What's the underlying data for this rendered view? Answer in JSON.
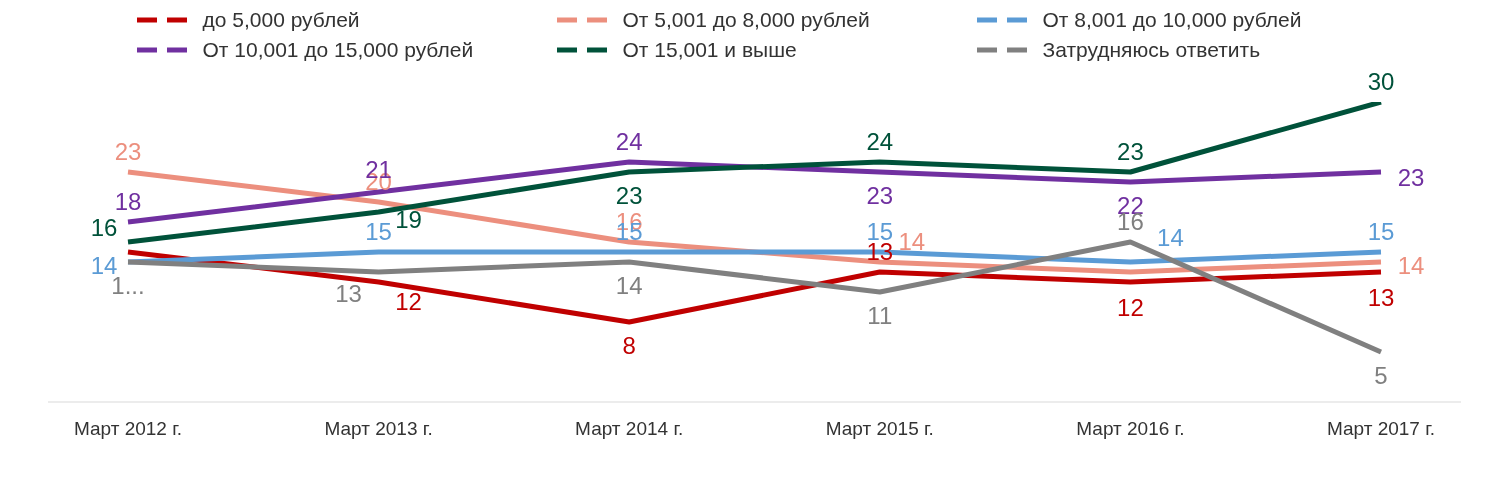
{
  "chart_data": {
    "type": "line",
    "categories": [
      "Март 2012 г.",
      "Март 2013 г.",
      "Март 2014 г.",
      "Март 2015 г.",
      "Март 2016 г.",
      "Март 2017 г."
    ],
    "series": [
      {
        "name": "до 5,000 рублей",
        "color": "#c00000",
        "values": [
          15,
          12,
          8,
          13,
          12,
          13
        ],
        "value_labels": [
          null,
          "12",
          "8",
          "13",
          "12",
          "13"
        ]
      },
      {
        "name": "От 5,001 до 8,000 рублей",
        "color": "#ec8f7e",
        "values": [
          23,
          20,
          16,
          14,
          13,
          14
        ],
        "value_labels": [
          "23",
          "20",
          "16",
          "14",
          null,
          "14"
        ]
      },
      {
        "name": "От 8,001 до 10,000 рублей",
        "color": "#5b9bd5",
        "values": [
          14,
          15,
          15,
          15,
          14,
          15
        ],
        "value_labels": [
          "14",
          "15",
          "15",
          "15",
          "14",
          "15"
        ]
      },
      {
        "name": "От 10,001 до 15,000 рублей",
        "color": "#7030a0",
        "values": [
          18,
          21,
          24,
          23,
          22,
          23
        ],
        "value_labels": [
          "18",
          "21",
          "24",
          "23",
          "22",
          "23"
        ]
      },
      {
        "name": "От 15,001 и выше",
        "color": "#00523a",
        "values": [
          16,
          19,
          23,
          24,
          23,
          30
        ],
        "value_labels": [
          "16",
          "19",
          "23",
          "24",
          "23",
          "30"
        ]
      },
      {
        "name": "Затрудняюсь ответить",
        "color": "#808080",
        "values": [
          14,
          13,
          14,
          11,
          16,
          5
        ],
        "value_labels": [
          "1...",
          "13",
          "14",
          "11",
          "16",
          "5"
        ]
      }
    ],
    "grid": false,
    "legend": "top",
    "marker": "none",
    "line_style": "solid"
  }
}
